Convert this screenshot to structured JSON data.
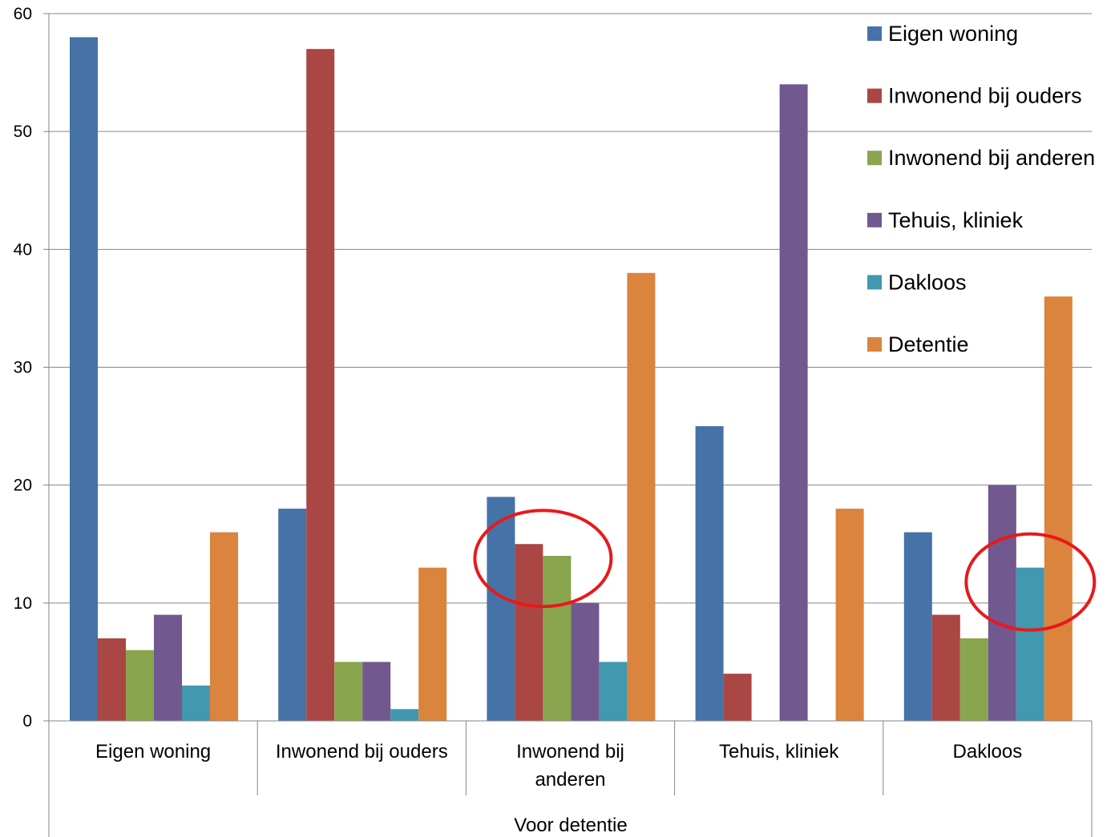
{
  "chart_data": {
    "type": "bar",
    "categories": [
      "Eigen woning",
      "Inwonend bij ouders",
      "Inwonend bij anderen",
      "Tehuis, kliniek",
      "Dakloos"
    ],
    "category_display": [
      [
        "Eigen woning"
      ],
      [
        "Inwonend bij ouders"
      ],
      [
        "Inwonend bij",
        "anderen"
      ],
      [
        "Tehuis, kliniek"
      ],
      [
        "Dakloos"
      ]
    ],
    "group_label": "Voor detentie",
    "series": [
      {
        "name": "Eigen woning",
        "color": "#4572A7",
        "values": [
          58,
          18,
          19,
          25,
          16
        ]
      },
      {
        "name": "Inwonend bij ouders",
        "color": "#AA4643",
        "values": [
          7,
          57,
          15,
          4,
          9
        ]
      },
      {
        "name": "Inwonend bij anderen",
        "color": "#89A54E",
        "values": [
          6,
          5,
          14,
          0,
          7
        ]
      },
      {
        "name": "Tehuis, kliniek",
        "color": "#71588F",
        "values": [
          9,
          5,
          10,
          54,
          20
        ]
      },
      {
        "name": "Dakloos",
        "color": "#4198AF",
        "values": [
          3,
          1,
          5,
          0,
          13
        ]
      },
      {
        "name": "Detentie",
        "color": "#DB843D",
        "values": [
          16,
          13,
          38,
          18,
          36
        ]
      }
    ],
    "ylim": [
      0,
      60
    ],
    "yticks": [
      "0",
      "10",
      "20",
      "30",
      "40",
      "50",
      "60"
    ],
    "grid": true,
    "legend_position": "top-right",
    "annotations": [
      {
        "type": "circle",
        "color": "#E8191A",
        "category": "Inwonend bij anderen",
        "series": [
          "Inwonend bij ouders",
          "Inwonend bij anderen"
        ]
      },
      {
        "type": "circle",
        "color": "#E8191A",
        "category": "Dakloos",
        "series": [
          "Dakloos"
        ]
      }
    ]
  }
}
